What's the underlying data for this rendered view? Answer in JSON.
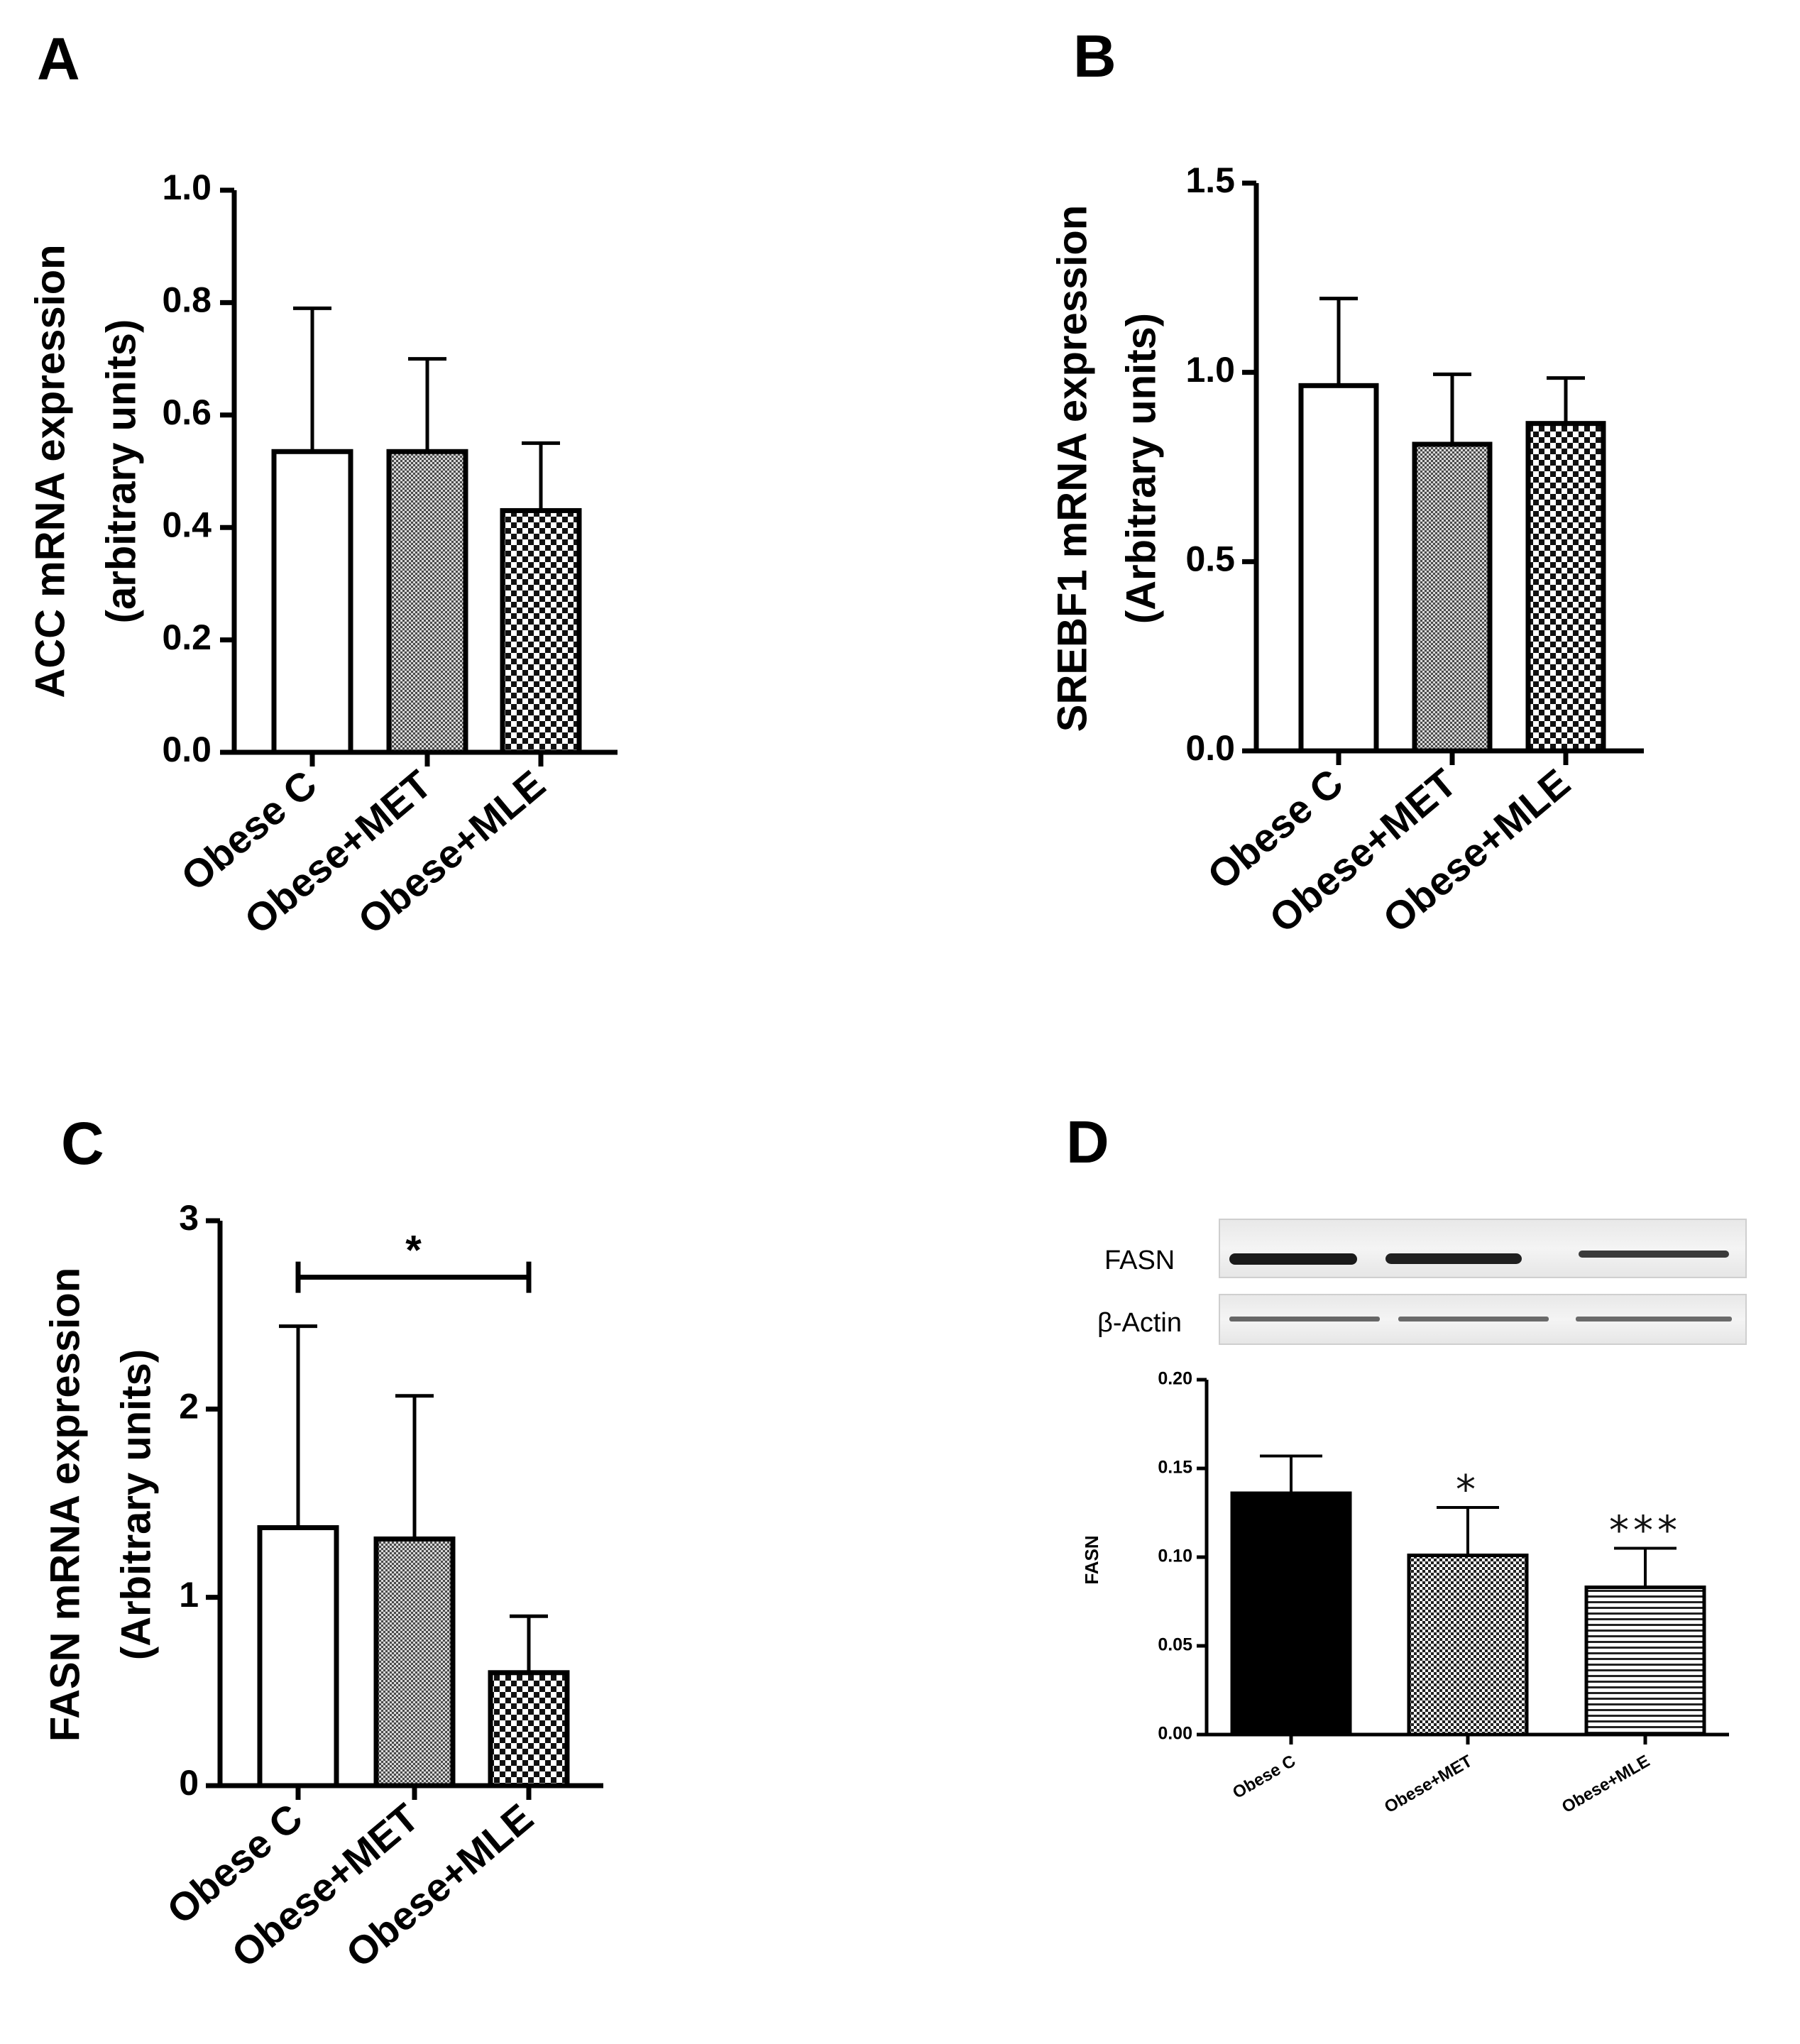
{
  "chart_data": [
    {
      "panel": "A",
      "type": "bar",
      "ylabel": [
        "ACC mRNA expression",
        "(arbitrary units)"
      ],
      "categories": [
        "Obese C",
        "Obese+MET",
        "Obese+MLE"
      ],
      "values": [
        0.535,
        0.535,
        0.43
      ],
      "errors": [
        0.255,
        0.165,
        0.12
      ],
      "ylim": [
        0,
        1.0
      ],
      "yticks": [
        0.0,
        0.2,
        0.4,
        0.6,
        0.8,
        1.0
      ],
      "ytick_labels": [
        "0.0",
        "0.2",
        "0.4",
        "0.6",
        "0.8",
        "1.0"
      ],
      "patterns": [
        "white",
        "fine-check",
        "coarse-check"
      ],
      "significance": []
    },
    {
      "panel": "B",
      "type": "bar",
      "ylabel": [
        "SREBF1 mRNA expression",
        "(Arbitrary units)"
      ],
      "categories": [
        "Obese C",
        "Obese+MET",
        "Obese+MLE"
      ],
      "values": [
        0.965,
        0.81,
        0.865
      ],
      "errors": [
        0.23,
        0.185,
        0.12
      ],
      "ylim": [
        0,
        1.5
      ],
      "yticks": [
        0.0,
        0.5,
        1.0,
        1.5
      ],
      "ytick_labels": [
        "0.0",
        "0.5",
        "1.0",
        "1.5"
      ],
      "patterns": [
        "white",
        "fine-check",
        "coarse-check"
      ],
      "significance": []
    },
    {
      "panel": "C",
      "type": "bar",
      "ylabel": [
        "FASN mRNA expression",
        "(Arbitrary units)"
      ],
      "categories": [
        "Obese C",
        "Obese+MET",
        "Obese+MLE"
      ],
      "values": [
        1.37,
        1.31,
        0.6
      ],
      "errors": [
        1.07,
        0.76,
        0.3
      ],
      "ylim": [
        0,
        3
      ],
      "yticks": [
        0,
        1,
        2,
        3
      ],
      "ytick_labels": [
        "0",
        "1",
        "2",
        "3"
      ],
      "patterns": [
        "white",
        "fine-check",
        "coarse-check"
      ],
      "significance": [
        {
          "from": 0,
          "to": 2,
          "label": "*",
          "y": 2.7
        }
      ]
    },
    {
      "panel": "D",
      "type": "bar",
      "ylabel": [
        "FASN"
      ],
      "categories": [
        "Obese C",
        "Obese+MET",
        "Obese+MLE"
      ],
      "values": [
        0.136,
        0.101,
        0.083
      ],
      "errors": [
        0.021,
        0.027,
        0.022
      ],
      "ylim": [
        0,
        0.2
      ],
      "yticks": [
        0.0,
        0.05,
        0.1,
        0.15,
        0.2
      ],
      "ytick_labels": [
        "0.00",
        "0.05",
        "0.10",
        "0.15",
        "0.20"
      ],
      "patterns": [
        "black",
        "fine-check-dark",
        "hstripes"
      ],
      "bar_labels": [
        "",
        "*",
        "***"
      ],
      "blot_labels": [
        "FASN",
        "β-Actin"
      ]
    }
  ]
}
